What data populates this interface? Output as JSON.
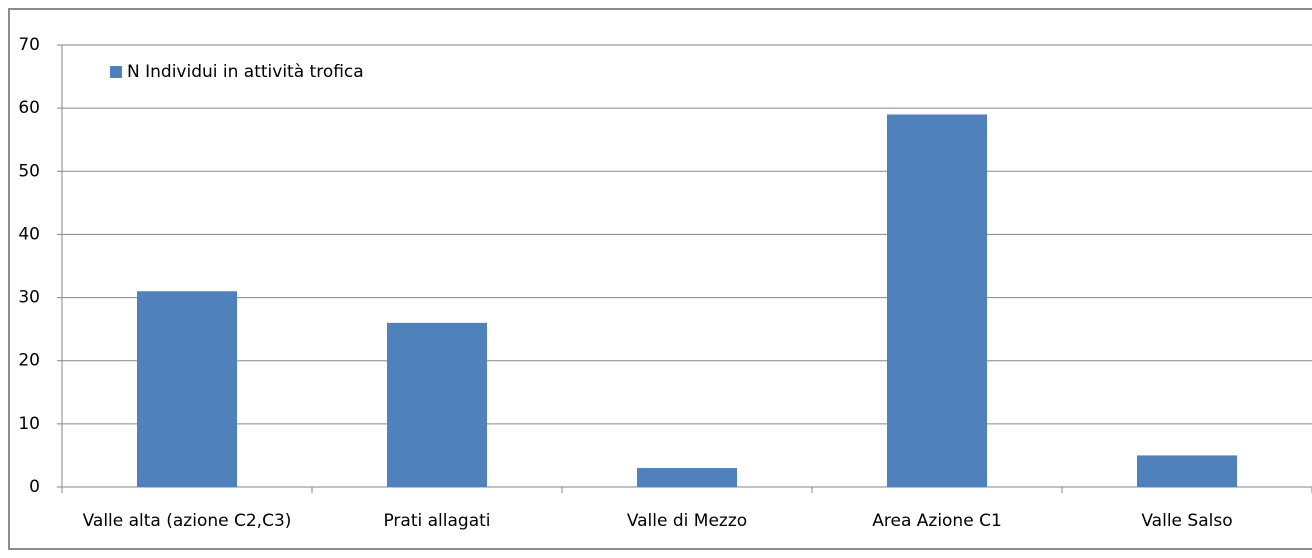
{
  "chart_data": {
    "type": "bar",
    "categories": [
      "Valle alta (azione C2,C3)",
      "Prati allagati",
      "Valle di Mezzo",
      "Area Azione C1",
      "Valle Salso"
    ],
    "series": [
      {
        "name": "N Individui in attività trofica",
        "color": "#4f81bd",
        "values": [
          31,
          26,
          3,
          59,
          5
        ]
      }
    ],
    "ylim": [
      0,
      70
    ],
    "yticks": [
      0,
      10,
      20,
      30,
      40,
      50,
      60,
      70
    ],
    "grid": true,
    "legend": "top-left"
  }
}
